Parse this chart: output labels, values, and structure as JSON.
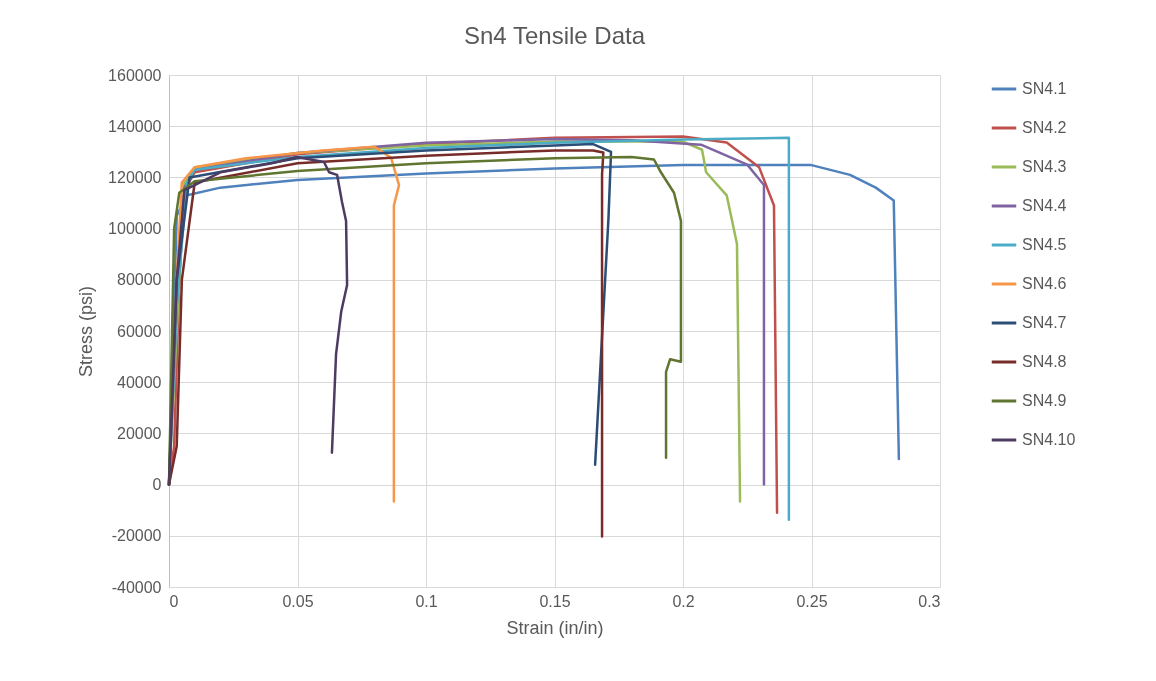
{
  "chart_data": {
    "type": "line",
    "title": "Sn4 Tensile Data",
    "xlabel": "Strain (in/in)",
    "ylabel": "Stress (psi)",
    "xlim": [
      0,
      0.3
    ],
    "xticks": [
      0,
      0.05,
      0.1,
      0.15,
      0.2,
      0.25,
      0.3
    ],
    "ylim": [
      -40000,
      160000
    ],
    "yticks": [
      -40000,
      -20000,
      0,
      20000,
      40000,
      60000,
      80000,
      100000,
      120000,
      140000,
      160000
    ],
    "grid": true,
    "legend": "right",
    "series": [
      {
        "name": "SN4.1",
        "color": "#4f81bd",
        "x": [
          0,
          0.003,
          0.007,
          0.02,
          0.05,
          0.1,
          0.15,
          0.2,
          0.25,
          0.265,
          0.275,
          0.282,
          0.284
        ],
        "values": [
          0,
          105000,
          113000,
          116000,
          119000,
          121500,
          123500,
          124800,
          124800,
          121000,
          116000,
          111000,
          10000
        ]
      },
      {
        "name": "SN4.2",
        "color": "#c0504d",
        "x": [
          0,
          0.002,
          0.004,
          0.006,
          0.01,
          0.05,
          0.1,
          0.15,
          0.2,
          0.217,
          0.2296,
          0.2354,
          0.2366
        ],
        "values": [
          0,
          15000,
          80000,
          115000,
          122000,
          129000,
          133000,
          135500,
          136000,
          133600,
          124000,
          109000,
          -11000
        ]
      },
      {
        "name": "SN4.3",
        "color": "#9bbb59",
        "x": [
          0,
          0.003,
          0.006,
          0.01,
          0.05,
          0.1,
          0.15,
          0.2,
          0.2074,
          0.209,
          0.217,
          0.221,
          0.2222
        ],
        "values": [
          0,
          60000,
          118000,
          124000,
          129500,
          132500,
          134000,
          134000,
          130800,
          122000,
          113000,
          94000,
          -6600
        ]
      },
      {
        "name": "SN4.4",
        "color": "#8064a2",
        "x": [
          0,
          0.003,
          0.006,
          0.01,
          0.05,
          0.1,
          0.15,
          0.18,
          0.207,
          0.225,
          0.2315,
          0.2315
        ],
        "values": [
          0,
          70000,
          116000,
          123000,
          129500,
          133500,
          135000,
          134500,
          132800,
          125000,
          117000,
          0
        ]
      },
      {
        "name": "SN4.5",
        "color": "#4bacc6",
        "x": [
          0,
          0.003,
          0.007,
          0.01,
          0.05,
          0.1,
          0.15,
          0.2,
          0.2412,
          0.2412
        ],
        "values": [
          0,
          70000,
          118000,
          123000,
          128000,
          131500,
          133500,
          134800,
          135500,
          -13700
        ]
      },
      {
        "name": "SN4.6",
        "color": "#f79646",
        "x": [
          0,
          0.003,
          0.005,
          0.01,
          0.03,
          0.06,
          0.08,
          0.0864,
          0.0895,
          0.0875,
          0.0875
        ],
        "values": [
          0,
          80000,
          118000,
          124000,
          127500,
          130500,
          132000,
          127700,
          117000,
          109000,
          -6600
        ]
      },
      {
        "name": "SN4.7",
        "color": "#2c4d75",
        "x": [
          0,
          0.003,
          0.008,
          0.05,
          0.1,
          0.15,
          0.165,
          0.172,
          0.171,
          0.1658
        ],
        "values": [
          0,
          80000,
          120000,
          127500,
          130500,
          132500,
          133000,
          130000,
          104000,
          7800
        ]
      },
      {
        "name": "SN4.8",
        "color": "#772c2a",
        "x": [
          0,
          0.003,
          0.005,
          0.01,
          0.05,
          0.1,
          0.15,
          0.165,
          0.169,
          0.1685,
          0.1685
        ],
        "values": [
          0,
          15000,
          80000,
          118000,
          125500,
          128500,
          130500,
          130500,
          129700,
          121000,
          -20300
        ]
      },
      {
        "name": "SN4.9",
        "color": "#5f7530",
        "x": [
          0,
          0.002,
          0.004,
          0.01,
          0.05,
          0.1,
          0.15,
          0.18,
          0.1887,
          0.1914,
          0.1965,
          0.1992,
          0.1992,
          0.195,
          0.1934,
          0.1934
        ],
        "values": [
          0,
          100000,
          114000,
          118500,
          122500,
          125500,
          127500,
          128000,
          127000,
          122000,
          114000,
          103000,
          48000,
          49000,
          44000,
          10500
        ]
      },
      {
        "name": "SN4.10",
        "color": "#4d3b62",
        "x": [
          0,
          0.003,
          0.006,
          0.02,
          0.04,
          0.0498,
          0.0603,
          0.0623,
          0.0654,
          0.0673,
          0.0689,
          0.0693,
          0.067,
          0.065,
          0.0634
        ],
        "values": [
          0,
          80000,
          115000,
          122000,
          125500,
          128000,
          126000,
          122000,
          121000,
          110500,
          103000,
          78000,
          67500,
          51000,
          12500
        ]
      }
    ]
  }
}
